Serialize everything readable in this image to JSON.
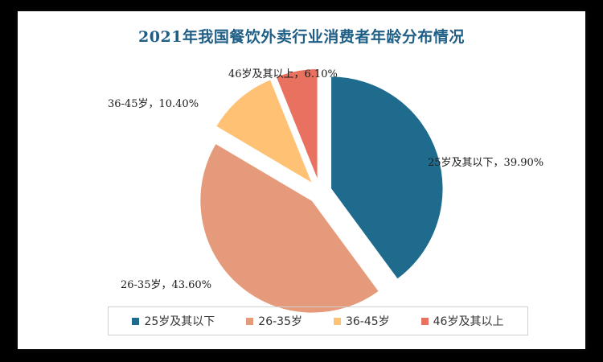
{
  "chart_data": {
    "type": "pie",
    "title": "2021年我国餐饮外卖行业消费者年龄分布情况",
    "slices": [
      {
        "name": "25岁及其以下",
        "value": 39.9,
        "label": "25岁及其以下，39.90%",
        "color": "#1f6b8e"
      },
      {
        "name": "26-35岁",
        "value": 43.6,
        "label": "26-35岁，43.60%",
        "color": "#e59b7b"
      },
      {
        "name": "36-45岁",
        "value": 10.4,
        "label": "36-45岁，10.40%",
        "color": "#ffc174"
      },
      {
        "name": "46岁及其以上",
        "value": 6.1,
        "label": "46岁及其以上，6.10%",
        "color": "#e8715f"
      }
    ],
    "legend": {
      "position": "bottom",
      "items": [
        "25岁及其以下",
        "26-35岁",
        "36-45岁",
        "46岁及其以上"
      ]
    }
  }
}
